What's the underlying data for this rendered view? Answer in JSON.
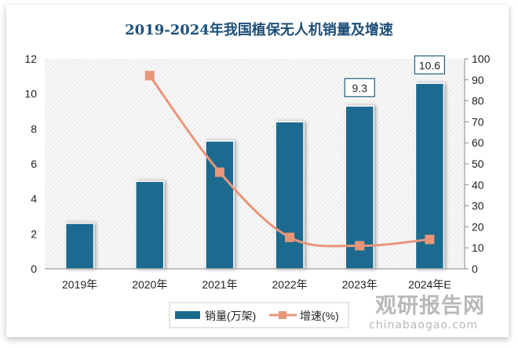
{
  "chart_data": {
    "type": "bar",
    "title": "2019-2024年我国植保无人机销量及增速",
    "categories": [
      "2019年",
      "2020年",
      "2021年",
      "2022年",
      "2023年",
      "2024年E"
    ],
    "series": [
      {
        "name": "销量(万架)",
        "type": "bar",
        "axis": "left",
        "values": [
          2.6,
          5.0,
          7.3,
          8.4,
          9.3,
          10.6
        ],
        "color": "#1d6a8f"
      },
      {
        "name": "增速(%)",
        "type": "line",
        "axis": "right",
        "values": [
          null,
          92,
          46,
          15,
          11,
          14
        ],
        "color": "#e8967a"
      }
    ],
    "data_labels": [
      {
        "category": "2023年",
        "text": "9.3"
      },
      {
        "category": "2024年E",
        "text": "10.6"
      }
    ],
    "ylim_left": [
      0,
      12
    ],
    "yticks_left": [
      "0",
      "2",
      "4",
      "6",
      "8",
      "10",
      "12"
    ],
    "ylim_right": [
      0,
      100
    ],
    "yticks_right": [
      "0",
      "10",
      "20",
      "30",
      "40",
      "50",
      "60",
      "70",
      "80",
      "90",
      "100"
    ],
    "legend_position": "bottom",
    "grid": false
  },
  "watermark": {
    "name": "观研报告网",
    "url": "chinabaogao.com"
  }
}
